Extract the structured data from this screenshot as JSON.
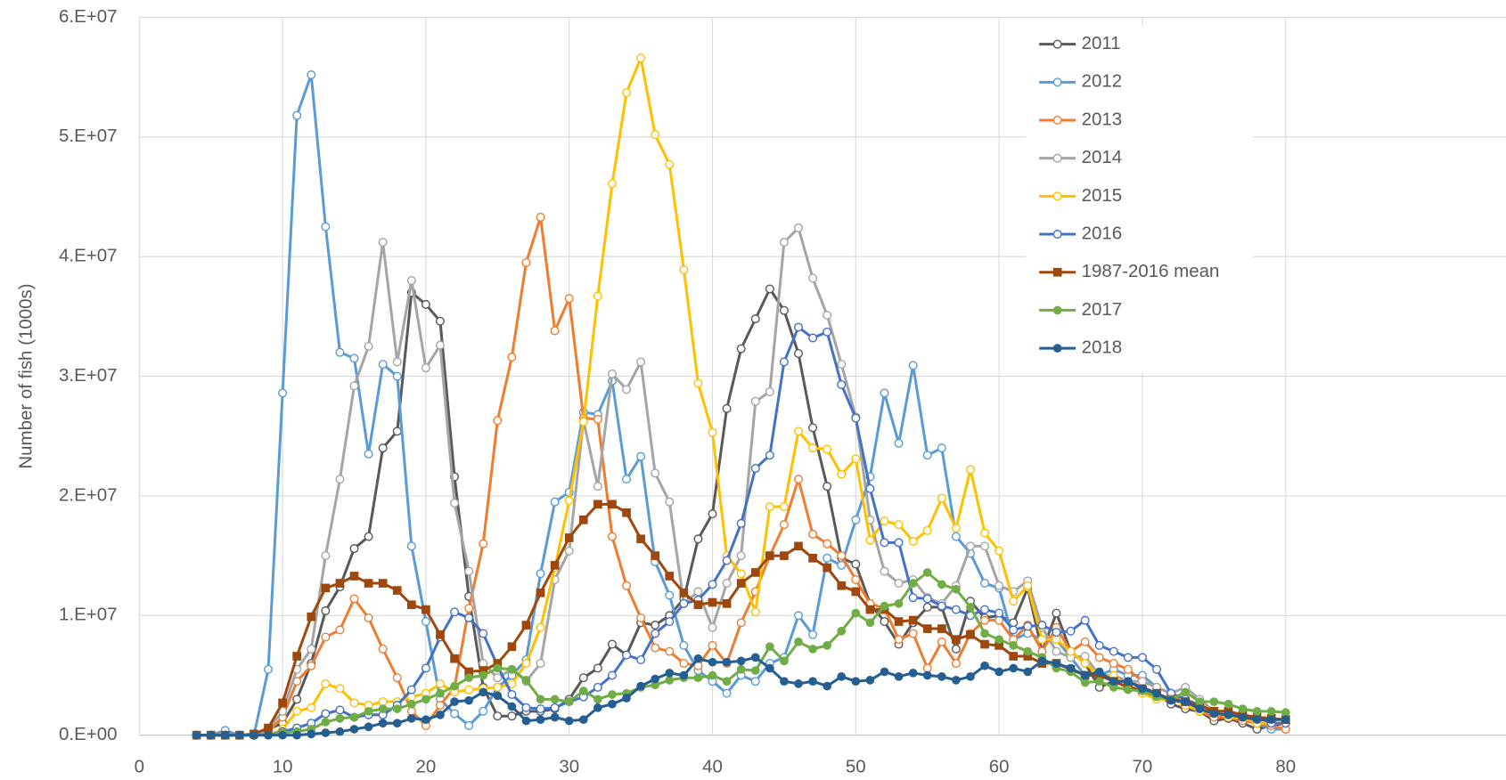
{
  "chart_data": {
    "type": "line",
    "y_label": "Number of fish (1000s)",
    "x": [
      4,
      5,
      6,
      7,
      8,
      9,
      10,
      11,
      12,
      13,
      14,
      15,
      16,
      17,
      18,
      19,
      20,
      21,
      22,
      23,
      24,
      25,
      26,
      27,
      28,
      29,
      30,
      31,
      32,
      33,
      34,
      35,
      36,
      37,
      38,
      39,
      40,
      41,
      42,
      43,
      44,
      45,
      46,
      47,
      48,
      49,
      50,
      51,
      52,
      53,
      54,
      55,
      56,
      57,
      58,
      59,
      60,
      61,
      62,
      63,
      64,
      65,
      66,
      67,
      68,
      69,
      70,
      71,
      72,
      73,
      74,
      75,
      76,
      77,
      78,
      79,
      80
    ],
    "xlim": [
      0,
      100
    ],
    "xticks": [
      0,
      10,
      20,
      30,
      40,
      50,
      60,
      70,
      80
    ],
    "ylim": [
      0,
      60000000
    ],
    "yticks": [
      {
        "value": 0,
        "label": "0.E+00"
      },
      {
        "value": 10000000,
        "label": "1.E+07"
      },
      {
        "value": 20000000,
        "label": "2.E+07"
      },
      {
        "value": 30000000,
        "label": "3.E+07"
      },
      {
        "value": 40000000,
        "label": "4.E+07"
      },
      {
        "value": 50000000,
        "label": "5.E+07"
      },
      {
        "value": 60000000,
        "label": "6.E+07"
      }
    ],
    "grid": true,
    "legend": "upper right",
    "series": [
      {
        "name": "2011",
        "color": "#595959",
        "marker": "open-circle",
        "values": [
          0,
          0,
          0,
          0,
          0,
          500000.0,
          1000000.0,
          3000000.0,
          6000000.0,
          10400000.0,
          12400000.0,
          15600000.0,
          16600000.0,
          24000000.0,
          25400000.0,
          37000000.0,
          36000000.0,
          34600000.0,
          21600000.0,
          11600000.0,
          4000000.0,
          1600000.0,
          1600000.0,
          2000000.0,
          2000000.0,
          2200000.0,
          3000000.0,
          4800000.0,
          5600000.0,
          7600000.0,
          6700000.0,
          9400000.0,
          9200000.0,
          10000000.0,
          11400000.0,
          16400000.0,
          18500000.0,
          27300000.0,
          32300000.0,
          34800000.0,
          37300000.0,
          35500000.0,
          31900000.0,
          25700000.0,
          20800000.0,
          14800000.0,
          14300000.0,
          11000000.0,
          9500000.0,
          7600000.0,
          9400000.0,
          10700000.0,
          10700000.0,
          7200000.0,
          11200000.0,
          9800000.0,
          10000000.0,
          9400000.0,
          12300000.0,
          7000000.0,
          10200000.0,
          7000000.0,
          6000000.0,
          4000000.0,
          4500000.0,
          4500000.0,
          4000000.0,
          3500000.0,
          2600000.0,
          2200000.0,
          2000000.0,
          1200000.0,
          1400000.0,
          1000000.0,
          500000.0,
          800000.0,
          1000000.0
        ]
      },
      {
        "name": "2012",
        "color": "#5b9bd5",
        "marker": "open-circle",
        "values": [
          0,
          0,
          400000.0,
          0,
          0,
          5500000.0,
          28600000.0,
          51800000.0,
          55200000.0,
          42500000.0,
          32000000.0,
          31500000.0,
          23500000.0,
          31000000.0,
          30000000.0,
          15800000.0,
          9500000.0,
          3000000.0,
          1800000.0,
          800000.0,
          2000000.0,
          4000000.0,
          5000000.0,
          6300000.0,
          13500000.0,
          19500000.0,
          20300000.0,
          27000000.0,
          26800000.0,
          29600000.0,
          21400000.0,
          23300000.0,
          14500000.0,
          11700000.0,
          7500000.0,
          5400000.0,
          4500000.0,
          3500000.0,
          5000000.0,
          4500000.0,
          6000000.0,
          6500000.0,
          10000000.0,
          8400000.0,
          14800000.0,
          14200000.0,
          18000000.0,
          21600000.0,
          28600000.0,
          24400000.0,
          30900000.0,
          23400000.0,
          24000000.0,
          16600000.0,
          15200000.0,
          12700000.0,
          12300000.0,
          8000000.0,
          8500000.0,
          8000000.0,
          8000000.0,
          6500000.0,
          5000000.0,
          5000000.0,
          5500000.0,
          5000000.0,
          5000000.0,
          4000000.0,
          3500000.0,
          3000000.0,
          2500000.0,
          2000000.0,
          2000000.0,
          1500000.0,
          1000000.0,
          500000.0,
          500000.0
        ]
      },
      {
        "name": "2013",
        "color": "#ed7d31",
        "marker": "open-circle",
        "values": [
          0,
          0,
          0,
          0,
          0,
          300000.0,
          1500000.0,
          4500000.0,
          5800000.0,
          8200000.0,
          8800000.0,
          11400000.0,
          9800000.0,
          7200000.0,
          4800000.0,
          2000000.0,
          800000.0,
          2500000.0,
          4000000.0,
          10600000.0,
          16000000.0,
          26300000.0,
          31600000.0,
          39500000.0,
          43300000.0,
          33800000.0,
          36500000.0,
          26500000.0,
          26400000.0,
          16600000.0,
          12500000.0,
          9800000.0,
          7300000.0,
          7000000.0,
          6000000.0,
          5800000.0,
          7500000.0,
          6000000.0,
          9400000.0,
          12000000.0,
          15000000.0,
          17600000.0,
          21400000.0,
          16800000.0,
          16000000.0,
          15000000.0,
          13000000.0,
          11000000.0,
          10600000.0,
          8000000.0,
          8500000.0,
          5600000.0,
          7800000.0,
          6000000.0,
          8500000.0,
          9600000.0,
          9600000.0,
          8000000.0,
          9200000.0,
          7000000.0,
          9000000.0,
          7000000.0,
          7800000.0,
          6500000.0,
          6000000.0,
          5500000.0,
          4500000.0,
          4000000.0,
          3500000.0,
          2500000.0,
          2000000.0,
          1500000.0,
          1500000.0,
          1200000.0,
          1000000.0,
          800000.0,
          500000.0
        ]
      },
      {
        "name": "2014",
        "color": "#a5a5a5",
        "marker": "open-circle",
        "values": [
          0,
          0,
          0,
          0,
          0,
          500000.0,
          2000000.0,
          5500000.0,
          7200000.0,
          15000000.0,
          21400000.0,
          29200000.0,
          32500000.0,
          41200000.0,
          31200000.0,
          38000000.0,
          30700000.0,
          32600000.0,
          19400000.0,
          13700000.0,
          6000000.0,
          4800000.0,
          5500000.0,
          4500000.0,
          6000000.0,
          13000000.0,
          15400000.0,
          26300000.0,
          20800000.0,
          30200000.0,
          28900000.0,
          31200000.0,
          21900000.0,
          19500000.0,
          11000000.0,
          12000000.0,
          9000000.0,
          12700000.0,
          15000000.0,
          27900000.0,
          28700000.0,
          41200000.0,
          42400000.0,
          38200000.0,
          35100000.0,
          31000000.0,
          26600000.0,
          18000000.0,
          13700000.0,
          12700000.0,
          13000000.0,
          11500000.0,
          11000000.0,
          12500000.0,
          15800000.0,
          15800000.0,
          12500000.0,
          12000000.0,
          12900000.0,
          9000000.0,
          7000000.0,
          6500000.0,
          6600000.0,
          5000000.0,
          5000000.0,
          4500000.0,
          4500000.0,
          4000000.0,
          3500000.0,
          4000000.0,
          3000000.0,
          2000000.0,
          2000000.0,
          1500000.0,
          1500000.0,
          1000000.0,
          1000000.0
        ]
      },
      {
        "name": "2015",
        "color": "#ffc000",
        "marker": "open-circle",
        "values": [
          0,
          0,
          0,
          0,
          0,
          0,
          500000.0,
          2000000.0,
          2300000.0,
          4300000.0,
          3900000.0,
          2700000.0,
          2500000.0,
          2800000.0,
          2800000.0,
          3200000.0,
          3500000.0,
          4300000.0,
          3600000.0,
          3800000.0,
          3900000.0,
          4000000.0,
          4300000.0,
          6000000.0,
          9000000.0,
          14000000.0,
          19600000.0,
          26200000.0,
          36700000.0,
          46100000.0,
          53700000.0,
          56600000.0,
          50200000.0,
          47700000.0,
          38900000.0,
          29400000.0,
          25300000.0,
          15000000.0,
          13500000.0,
          10300000.0,
          19100000.0,
          19100000.0,
          25400000.0,
          24000000.0,
          23900000.0,
          21800000.0,
          23100000.0,
          16300000.0,
          17900000.0,
          17600000.0,
          16200000.0,
          17100000.0,
          19800000.0,
          17300000.0,
          22200000.0,
          16900000.0,
          15400000.0,
          11200000.0,
          12500000.0,
          8000000.0,
          8000000.0,
          7000000.0,
          6000000.0,
          5000000.0,
          5000000.0,
          4000000.0,
          3500000.0,
          3000000.0,
          3000000.0,
          2500000.0,
          2000000.0,
          2000000.0,
          1500000.0,
          1500000.0,
          1000000.0,
          1000000.0,
          1000000.0
        ]
      },
      {
        "name": "2016",
        "color": "#4472c4",
        "marker": "open-circle",
        "values": [
          0,
          0,
          0,
          0,
          0,
          0,
          300000.0,
          600000.0,
          1000000.0,
          1800000.0,
          2100000.0,
          1500000.0,
          1700000.0,
          1700000.0,
          2500000.0,
          3800000.0,
          5600000.0,
          8200000.0,
          10300000.0,
          9800000.0,
          8500000.0,
          5800000.0,
          3400000.0,
          2300000.0,
          2200000.0,
          2300000.0,
          2800000.0,
          3200000.0,
          4000000.0,
          5000000.0,
          6700000.0,
          6300000.0,
          8500000.0,
          9500000.0,
          11000000.0,
          11300000.0,
          12600000.0,
          14600000.0,
          17700000.0,
          22300000.0,
          23400000.0,
          31200000.0,
          34100000.0,
          33200000.0,
          33700000.0,
          29300000.0,
          26500000.0,
          20600000.0,
          16100000.0,
          16100000.0,
          11500000.0,
          11400000.0,
          10800000.0,
          10500000.0,
          10000000.0,
          10500000.0,
          10200000.0,
          8800000.0,
          9100000.0,
          9200000.0,
          8600000.0,
          8700000.0,
          9600000.0,
          7500000.0,
          7000000.0,
          6500000.0,
          6500000.0,
          5500000.0,
          3500000.0,
          3000000.0,
          2500000.0,
          2000000.0,
          2000000.0,
          1500000.0,
          1500000.0,
          1000000.0,
          1000000.0
        ]
      },
      {
        "name": "1987-2016 mean",
        "color": "#9e480e",
        "marker": "square",
        "values": [
          0,
          0,
          0,
          0,
          100000.0,
          600000.0,
          2700000.0,
          6600000.0,
          9900000.0,
          12300000.0,
          12700000.0,
          13300000.0,
          12700000.0,
          12700000.0,
          12100000.0,
          10900000.0,
          10500000.0,
          8400000.0,
          6400000.0,
          5300000.0,
          5400000.0,
          6000000.0,
          7400000.0,
          9200000.0,
          11900000.0,
          14200000.0,
          16500000.0,
          18000000.0,
          19300000.0,
          19300000.0,
          18600000.0,
          16400000.0,
          15000000.0,
          13300000.0,
          11900000.0,
          10900000.0,
          11100000.0,
          11000000.0,
          12700000.0,
          13600000.0,
          15000000.0,
          15000000.0,
          15800000.0,
          14800000.0,
          14000000.0,
          12500000.0,
          12000000.0,
          10500000.0,
          10500000.0,
          9500000.0,
          9600000.0,
          8900000.0,
          8900000.0,
          8000000.0,
          8400000.0,
          7600000.0,
          7500000.0,
          6600000.0,
          6600000.0,
          6000000.0,
          6000000.0,
          5500000.0,
          5000000.0,
          5000000.0,
          4500000.0,
          4000000.0,
          3800000.0,
          3500000.0,
          3000000.0,
          2800000.0,
          2500000.0,
          2000000.0,
          2000000.0,
          1700000.0,
          1500000.0,
          1400000.0,
          1300000.0
        ]
      },
      {
        "name": "2017",
        "color": "#70ad47",
        "marker": "circle",
        "values": [
          0,
          0,
          0,
          0,
          0,
          0,
          200000.0,
          300000.0,
          500000.0,
          1100000.0,
          1400000.0,
          1500000.0,
          2000000.0,
          2200000.0,
          2200000.0,
          2600000.0,
          3000000.0,
          3500000.0,
          4100000.0,
          4800000.0,
          5000000.0,
          5600000.0,
          5500000.0,
          4600000.0,
          3000000.0,
          3000000.0,
          2800000.0,
          3700000.0,
          3000000.0,
          3400000.0,
          3500000.0,
          4000000.0,
          4200000.0,
          4600000.0,
          4800000.0,
          4800000.0,
          5000000.0,
          4500000.0,
          5500000.0,
          5400000.0,
          7400000.0,
          6200000.0,
          7800000.0,
          7200000.0,
          7500000.0,
          8700000.0,
          10200000.0,
          9400000.0,
          10800000.0,
          11000000.0,
          12700000.0,
          13600000.0,
          12600000.0,
          12200000.0,
          10700000.0,
          8500000.0,
          8000000.0,
          7500000.0,
          7000000.0,
          6500000.0,
          5600000.0,
          5300000.0,
          4400000.0,
          4500000.0,
          4000000.0,
          3800000.0,
          3700000.0,
          3200000.0,
          3000000.0,
          3600000.0,
          2800000.0,
          2800000.0,
          2600000.0,
          2200000.0,
          2000000.0,
          2000000.0,
          1900000.0
        ]
      },
      {
        "name": "2018",
        "color": "#255e91",
        "marker": "circle",
        "values": [
          0,
          0,
          0,
          0,
          0,
          0,
          0,
          0,
          100000.0,
          200000.0,
          300000.0,
          500000.0,
          700000.0,
          1000000.0,
          1000000.0,
          1400000.0,
          1300000.0,
          1700000.0,
          2800000.0,
          2900000.0,
          3600000.0,
          3300000.0,
          2400000.0,
          1200000.0,
          1300000.0,
          1500000.0,
          1200000.0,
          1300000.0,
          2300000.0,
          2600000.0,
          3100000.0,
          4100000.0,
          4700000.0,
          5200000.0,
          5000000.0,
          6400000.0,
          6100000.0,
          6100000.0,
          6200000.0,
          6500000.0,
          5600000.0,
          4500000.0,
          4300000.0,
          4500000.0,
          4100000.0,
          4900000.0,
          4500000.0,
          4600000.0,
          5300000.0,
          4900000.0,
          5200000.0,
          5000000.0,
          4900000.0,
          4600000.0,
          4900000.0,
          5800000.0,
          5300000.0,
          5600000.0,
          5300000.0,
          6200000.0,
          6000000.0,
          5600000.0,
          5000000.0,
          5300000.0,
          4500000.0,
          4500000.0,
          3900000.0,
          3500000.0,
          2900000.0,
          2800000.0,
          2200000.0,
          1800000.0,
          1700000.0,
          1500000.0,
          1300000.0,
          1300000.0,
          1300000.0
        ]
      }
    ]
  }
}
